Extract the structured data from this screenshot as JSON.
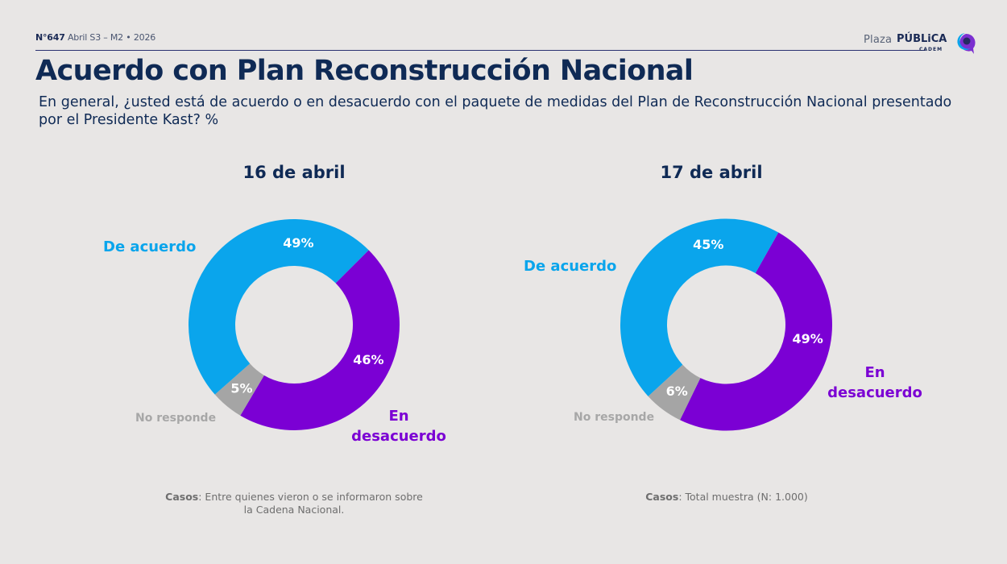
{
  "header": {
    "issue_number": "N°647",
    "issue_period": "Abril S3 – M2 • 2026",
    "logo": {
      "plaza": "Plaza",
      "publica": "PÚBLiCA",
      "cadem": "CADEM"
    }
  },
  "title": "Acuerdo con Plan Reconstrucción Nacional",
  "subtitle": "En general, ¿usted está de acuerdo o en desacuerdo con el paquete de medidas del Plan de Reconstrucción Nacional presentado por el Presidente Kast? %",
  "colors": {
    "acuerdo": "#0aa5ec",
    "desacuerdo": "#7b00d4",
    "no_responde": "#a5a5a5",
    "title": "#0f2a55",
    "background": "#e8e6e5"
  },
  "chart_data": [
    {
      "type": "pie",
      "variant": "donut",
      "title": "16 de abril",
      "categories": [
        "De acuerdo",
        "En desacuerdo",
        "No responde"
      ],
      "values": [
        49,
        46,
        5
      ],
      "value_labels": [
        "49%",
        "46%",
        "5%"
      ],
      "unit": "%",
      "cases_label": "Casos",
      "cases_text": ": Entre quienes vieron o se informaron sobre la Cadena Nacional."
    },
    {
      "type": "pie",
      "variant": "donut",
      "title": "17 de abril",
      "categories": [
        "De acuerdo",
        "En desacuerdo",
        "No responde"
      ],
      "values": [
        45,
        49,
        6
      ],
      "value_labels": [
        "45%",
        "49%",
        "6%"
      ],
      "unit": "%",
      "cases_label": "Casos",
      "cases_text": ": Total muestra (N: 1.000)"
    }
  ],
  "legend_labels": {
    "acuerdo": "De acuerdo",
    "desacuerdo_line1": "En",
    "desacuerdo_line2": "desacuerdo",
    "no_responde": "No responde"
  }
}
